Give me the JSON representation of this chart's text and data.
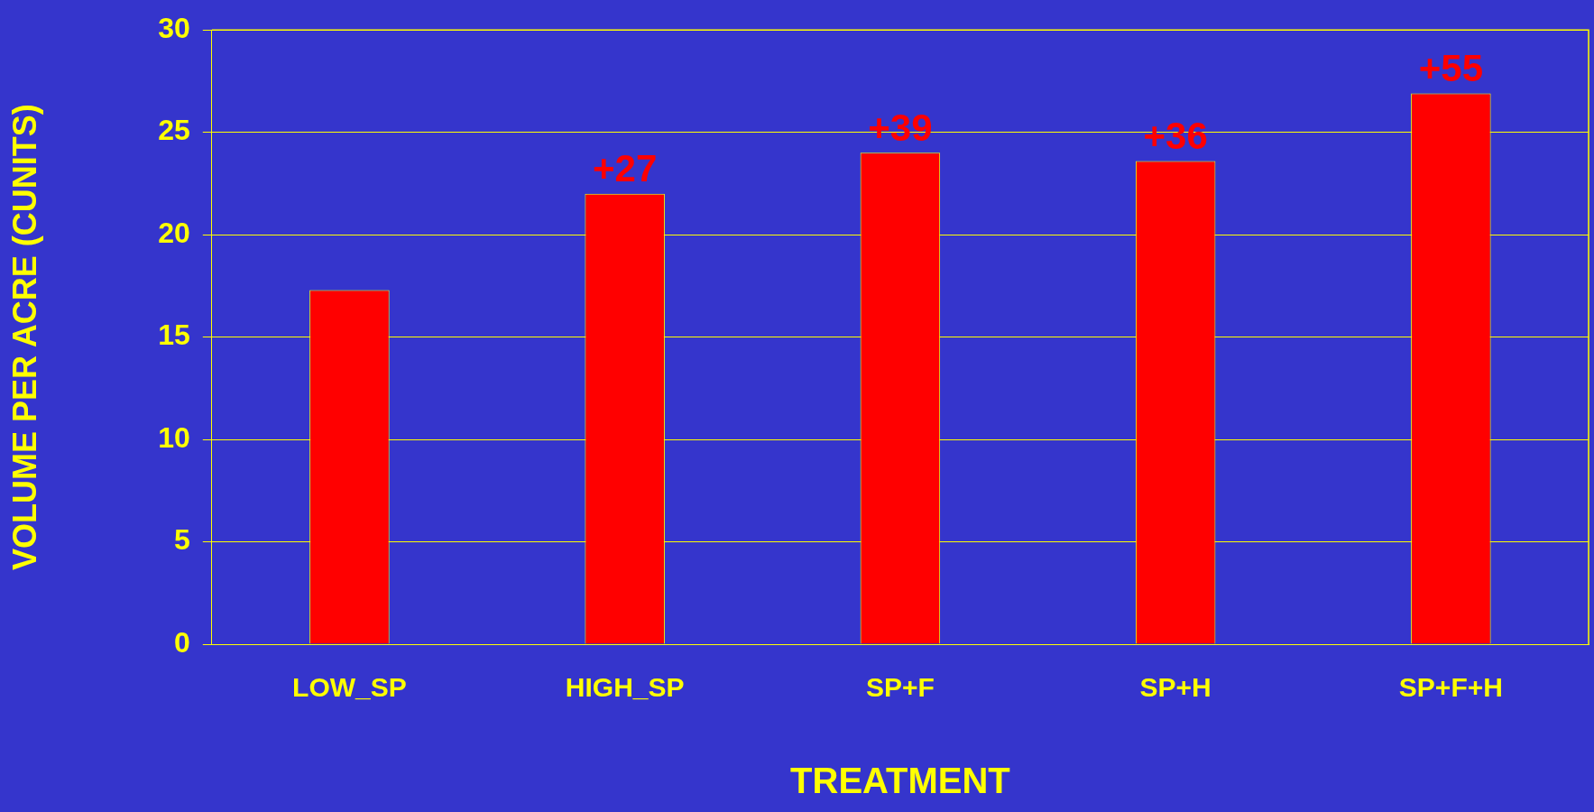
{
  "chart_data": {
    "type": "bar",
    "xlabel": "TREATMENT",
    "ylabel": "VOLUME PER ACRE (CUNITS)",
    "categories": [
      "LOW_SP",
      "HIGH_SP",
      "SP+F",
      "SP+H",
      "SP+F+H"
    ],
    "values": [
      17.3,
      22.0,
      24.0,
      23.6,
      26.9
    ],
    "color": "#ff0000",
    "annotations": [
      {
        "text": "+27",
        "x": "HIGH_SP",
        "y": 22.0
      },
      {
        "text": "+39",
        "x": "SP+F",
        "y": 24.0
      },
      {
        "text": "+36",
        "x": "SP+H",
        "y": 23.6
      },
      {
        "text": "+55",
        "x": "SP+F+H",
        "y": 26.9
      }
    ],
    "ylim": [
      0,
      30
    ],
    "yticks": [
      0,
      5,
      10,
      15,
      20,
      25,
      30
    ],
    "grid": "y"
  }
}
